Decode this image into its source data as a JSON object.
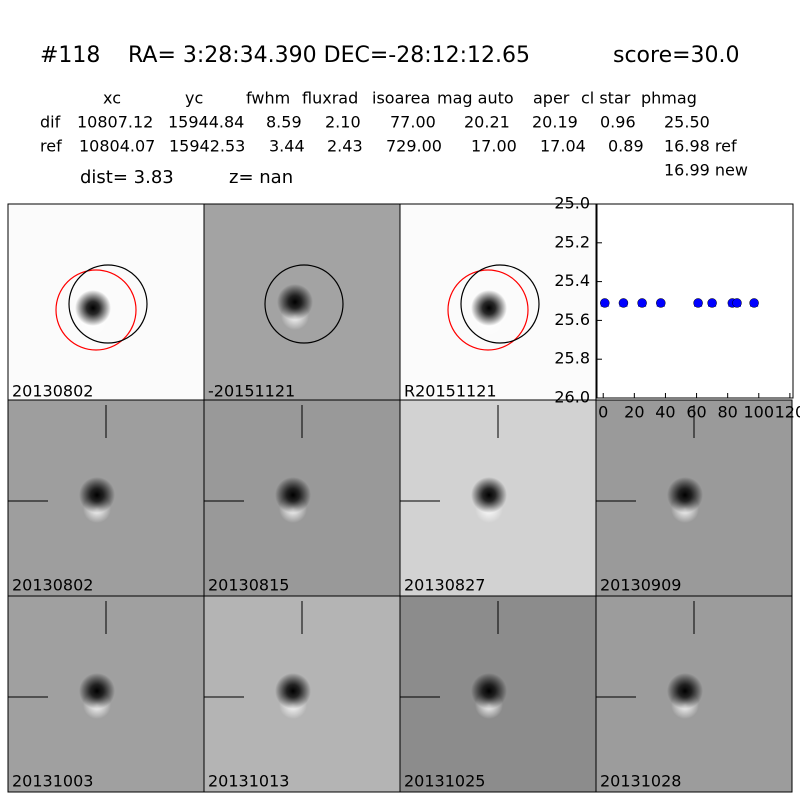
{
  "header": {
    "id": "#118",
    "coords": "RA= 3:28:34.390 DEC=-28:12:12.65",
    "score": "score=30.0"
  },
  "table": {
    "columns": [
      "xc",
      "yc",
      "fwhm",
      "fluxrad",
      "isoarea",
      "mag auto",
      "aper",
      "cl star",
      "phmag"
    ],
    "rows": [
      [
        "dif",
        "10807.12",
        "15944.84",
        "8.59",
        "2.10",
        "77.00",
        "20.21",
        "20.19",
        "0.96",
        "25.50"
      ],
      [
        "ref",
        "10804.07",
        "15942.53",
        "3.44",
        "2.43",
        "729.00",
        "17.00",
        "17.04",
        "0.89",
        "16.98 ref"
      ]
    ],
    "extra": "16.99 new"
  },
  "dist": "dist=  3.83",
  "z": "z=   nan",
  "panels": [
    "20130802",
    "-20151121",
    "R20151121"
  ],
  "stamps": [
    "20130802",
    "20130815",
    "20130827",
    "20130909",
    "20131003",
    "20131013",
    "20131025",
    "20131028"
  ],
  "chart_data": {
    "type": "scatter",
    "x": [
      1,
      13,
      25,
      37,
      61,
      70,
      83,
      86,
      97
    ],
    "values": [
      25.51,
      25.51,
      25.51,
      25.51,
      25.51,
      25.51,
      25.51,
      25.51,
      25.51
    ],
    "color": "#0000ff",
    "xlim": [
      -4,
      122
    ],
    "xticks": [
      0,
      20,
      40,
      60,
      80,
      100,
      120
    ],
    "ylim": [
      26,
      25
    ],
    "yticks": [
      {
        "value": 25,
        "label": "25.0"
      },
      {
        "value": 25.2,
        "label": "25.2"
      },
      {
        "value": 25.4,
        "label": "25.4"
      },
      {
        "value": 25.6,
        "label": "25.6"
      },
      {
        "value": 25.8,
        "label": "25.8"
      },
      {
        "value": 26,
        "label": "26.0"
      }
    ]
  }
}
